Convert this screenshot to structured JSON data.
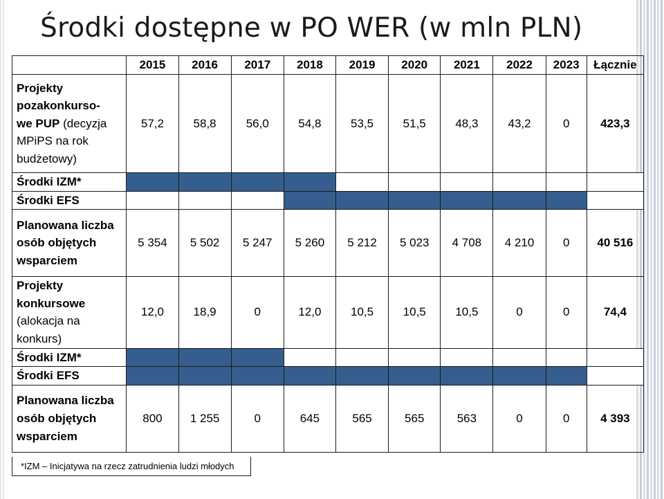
{
  "title": "Środki dostępne w PO WER (w mln PLN)",
  "header": {
    "years": [
      "2015",
      "2016",
      "2017",
      "2018",
      "2019",
      "2020",
      "2021",
      "2022",
      "2023"
    ],
    "total_label": "Łącznie"
  },
  "section1": {
    "label": [
      "Projekty",
      "pozakonkurso-",
      "we PUP",
      " (decyzja",
      "MPiPS na rok",
      "budżetowy)"
    ],
    "amounts": [
      "57,2",
      "58,8",
      "56,0",
      "54,8",
      "53,5",
      "51,5",
      "48,3",
      "43,2",
      "0"
    ],
    "amounts_total": "423,3",
    "izm_label": "Środki IZM*",
    "efs_label": "Środki EFS",
    "people_label": [
      "Planowana liczba",
      "osób objętych",
      "wsparciem"
    ],
    "izm_fill": [
      1,
      1,
      1,
      1,
      0,
      0,
      0,
      0,
      0,
      0
    ],
    "efs_fill": [
      0,
      0,
      0,
      1,
      1,
      1,
      1,
      1,
      1,
      0
    ],
    "people": [
      "5 354",
      "5 502",
      "5 247",
      "5 260",
      "5 212",
      "5 023",
      "4 708",
      "4 210",
      "0"
    ],
    "people_total": "40 516"
  },
  "section2": {
    "label": [
      "Projekty",
      "konkursowe",
      "(alokacja na",
      "konkurs)"
    ],
    "amounts": [
      "12,0",
      "18,9",
      "0",
      "12,0",
      "10,5",
      "10,5",
      "10,5",
      "0",
      "0"
    ],
    "amounts_total": "74,4",
    "izm_label": "Środki IZM*",
    "efs_label": "Środki EFS",
    "people_label": [
      "Planowana liczba",
      "osób objętych",
      "wsparciem"
    ],
    "izm_fill": [
      1,
      1,
      1,
      0,
      0,
      0,
      0,
      0,
      0,
      0
    ],
    "efs_fill": [
      1,
      1,
      1,
      1,
      1,
      1,
      1,
      1,
      1,
      0
    ],
    "people": [
      "800",
      "1 255",
      "0",
      "645",
      "565",
      "565",
      "563",
      "0",
      "0"
    ],
    "people_total": "4 393"
  },
  "footnote": "*IZM – Inicjatywa na rzecz zatrudnienia ludzi młodych"
}
